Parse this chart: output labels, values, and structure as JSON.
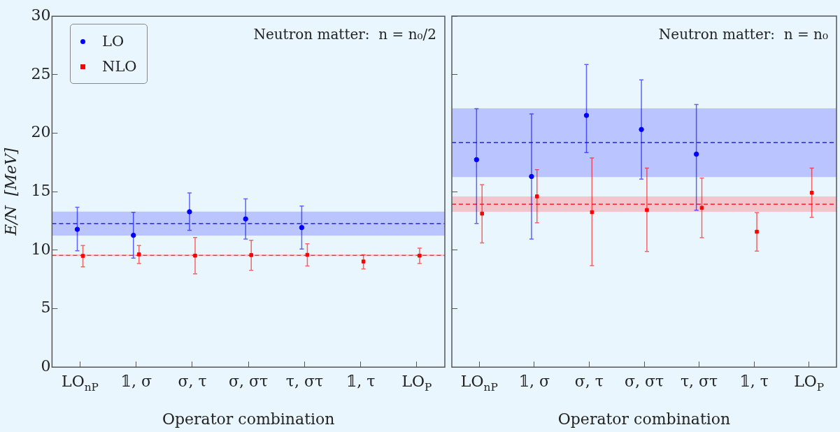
{
  "chart_data": [
    {
      "type": "scatter",
      "title": "Neutron matter:  n = n₀/2",
      "xlabel": "Operator combination",
      "ylabel": "E/N  [MeV]",
      "categories": [
        "LO$_{nP}$",
        "𝟙, σ",
        "σ, τ",
        "σ, στ",
        "τ, στ",
        "𝟙, τ",
        "LO$_{P}$"
      ],
      "series": [
        {
          "name": "LO",
          "color": "#0000ff",
          "marker": "circle",
          "values": [
            11.78,
            11.27,
            13.28,
            12.67,
            11.93,
            null,
            null
          ],
          "errors": [
            [
              9.94,
              13.67
            ],
            [
              9.32,
              13.24
            ],
            [
              11.69,
              14.89
            ],
            [
              10.95,
              14.39
            ],
            [
              10.1,
              13.77
            ],
            null,
            null
          ]
        },
        {
          "name": "NLO",
          "color": "#ff0000",
          "marker": "square",
          "values": [
            9.51,
            9.64,
            9.53,
            9.58,
            9.6,
            9.03,
            9.53
          ],
          "errors": [
            [
              8.58,
              10.4
            ],
            [
              8.86,
              10.4
            ],
            [
              7.97,
              11.08
            ],
            [
              8.28,
              10.85
            ],
            [
              8.64,
              10.55
            ],
            [
              8.39,
              9.6
            ],
            [
              8.86,
              10.17
            ]
          ]
        }
      ],
      "bands": [
        {
          "axis": "y",
          "from": 11.25,
          "to": 13.3,
          "color": "#bac4ff"
        },
        {
          "axis": "y",
          "from": 9.48,
          "to": 9.64,
          "color": "#f2c4cb"
        }
      ],
      "ref_lines": [
        {
          "axis": "y",
          "value": 12.27,
          "color": "#0000ff",
          "line_style": "dashed"
        },
        {
          "axis": "y",
          "value": 9.56,
          "color": "#ff0000",
          "line_style": "dashed"
        }
      ],
      "ylim": [
        0,
        30
      ],
      "yticks": [
        0,
        5,
        10,
        15,
        20,
        25,
        30
      ],
      "grid": false,
      "legend": "top left"
    },
    {
      "type": "scatter",
      "title": "Neutron matter:  n = n₀",
      "xlabel": "Operator combination",
      "categories": [
        "LO$_{nP}$",
        "𝟙, σ",
        "σ, τ",
        "σ, στ",
        "τ, στ",
        "𝟙, τ",
        "LO$_{P}$"
      ],
      "series": [
        {
          "color": "#0000ff",
          "marker": "circle",
          "values": [
            17.73,
            16.29,
            21.51,
            20.31,
            18.2,
            null,
            null
          ],
          "errors": [
            [
              12.27,
              22.08
            ],
            [
              10.94,
              21.63
            ],
            [
              18.33,
              25.86
            ],
            [
              16.06,
              24.55
            ],
            [
              13.41,
              22.45
            ],
            null,
            null
          ]
        },
        {
          "color": "#ff0000",
          "marker": "square",
          "values": [
            13.12,
            14.59,
            13.24,
            13.43,
            13.61,
            11.57,
            14.9
          ],
          "errors": [
            [
              10.61,
              15.59
            ],
            [
              12.33,
              16.88
            ],
            [
              8.67,
              17.88
            ],
            [
              9.88,
              17.0
            ],
            [
              11.06,
              16.16
            ],
            [
              9.92,
              13.2
            ],
            [
              12.8,
              17.0
            ]
          ]
        }
      ],
      "bands": [
        {
          "axis": "y",
          "from": 16.24,
          "to": 22.12,
          "color": "#bac4ff"
        },
        {
          "axis": "y",
          "from": 13.27,
          "to": 14.59,
          "color": "#f2c4cb"
        }
      ],
      "ref_lines": [
        {
          "axis": "y",
          "value": 19.2,
          "color": "#0000ff",
          "line_style": "dashed"
        },
        {
          "axis": "y",
          "value": 13.92,
          "color": "#ff0000",
          "line_style": "dashed"
        }
      ],
      "ylim": [
        0,
        30
      ],
      "yticks": [
        0,
        5,
        10,
        15,
        20,
        25,
        30
      ],
      "grid": false,
      "legend": false,
      "tick_labels": "x"
    }
  ]
}
